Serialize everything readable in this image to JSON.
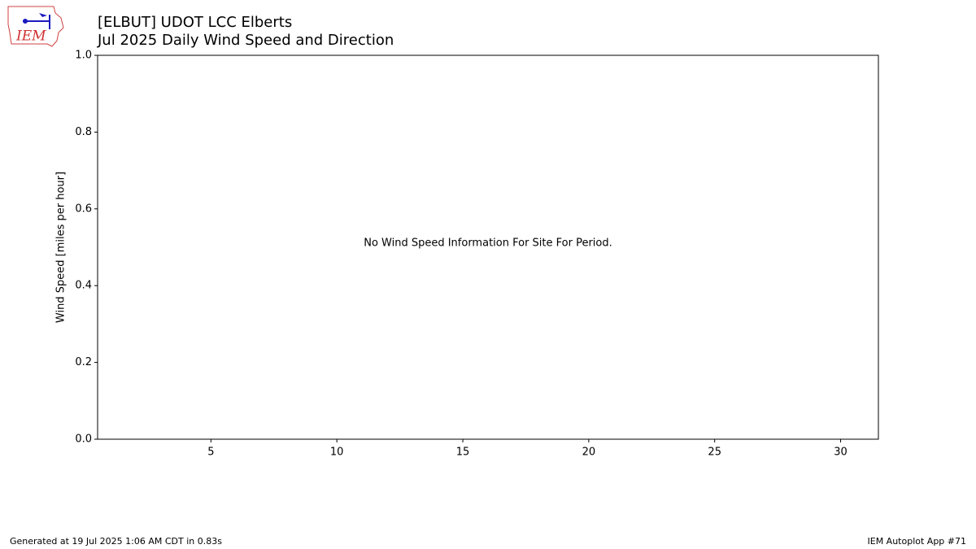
{
  "chart_data": {
    "type": "line",
    "logo": "IEM",
    "title": "[ELBUT] UDOT LCC Elberts",
    "subtitle": "Jul 2025 Daily Wind Speed and Direction",
    "ylabel": "Wind Speed [miles per hour]",
    "annotation": "No Wind Speed Information For Site For Period.",
    "series": [],
    "xlim": [
      0.5,
      31.5
    ],
    "xticks": [
      5,
      10,
      15,
      20,
      25,
      30
    ],
    "ylim": [
      0,
      1
    ],
    "yticks": [
      {
        "value": 0,
        "label": "0.0"
      },
      0.2,
      0.4,
      0.6,
      0.8,
      {
        "value": 1,
        "label": "1.0"
      }
    ],
    "grid": false,
    "footer_left": "Generated at 19 Jul 2025 1:06 AM CDT in 0.83s",
    "footer_right": "IEM Autoplot App #71"
  }
}
